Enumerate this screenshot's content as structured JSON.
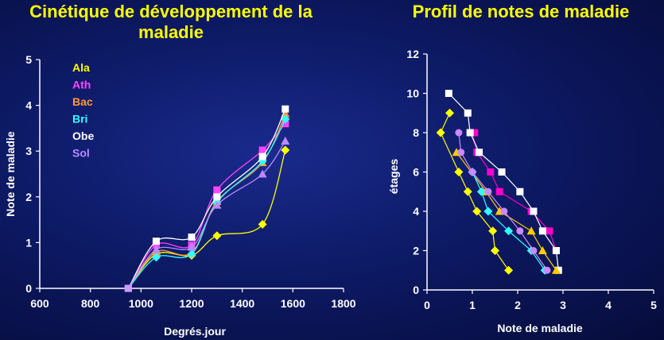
{
  "colors": {
    "Ala": "#ffff00",
    "Ath": "#ff44ff",
    "Bac": "#ff9933",
    "Bri": "#33ffff",
    "Obe": "#ffffff",
    "Sol": "#bb88ff",
    "P1": "#ffff00",
    "P2": "#ff00cc",
    "P3": "#ffffff",
    "P4": "#ffcc00",
    "P5": "#33ffff",
    "P6": "#cc88ff"
  },
  "chart_data": [
    {
      "type": "line",
      "title": "Cinétique de développement de la maladie",
      "xlabel": "Degrés.jour",
      "ylabel": "Note de maladie",
      "xlim": [
        600,
        1800
      ],
      "ylim": [
        0,
        5
      ],
      "xticks": [
        "600",
        "800",
        "1000",
        "1200",
        "1400",
        "1600",
        "1800"
      ],
      "yticks": [
        "0",
        "1",
        "2",
        "3",
        "4",
        "5"
      ],
      "legend_position": "top-left",
      "series": [
        {
          "name": "Ala",
          "marker": "diamond",
          "x": [
            950,
            1060,
            1200,
            1300,
            1480,
            1570
          ],
          "y": [
            0,
            0.75,
            0.72,
            1.15,
            1.4,
            3.02
          ]
        },
        {
          "name": "Ath",
          "marker": "square",
          "x": [
            950,
            1060,
            1200,
            1300,
            1480,
            1570
          ],
          "y": [
            0,
            0.95,
            0.95,
            2.15,
            3.02,
            3.6
          ]
        },
        {
          "name": "Bac",
          "marker": "triangle",
          "x": [
            950,
            1060,
            1200,
            1300,
            1480,
            1570
          ],
          "y": [
            0,
            0.8,
            0.78,
            1.9,
            2.75,
            3.82
          ]
        },
        {
          "name": "Bri",
          "marker": "diamond",
          "x": [
            950,
            1060,
            1200,
            1300,
            1480,
            1570
          ],
          "y": [
            0,
            0.68,
            0.75,
            1.88,
            2.78,
            3.7
          ]
        },
        {
          "name": "Obe",
          "marker": "square",
          "x": [
            950,
            1060,
            1200,
            1300,
            1480,
            1570
          ],
          "y": [
            0,
            1.03,
            1.12,
            2.0,
            2.88,
            3.92
          ]
        },
        {
          "name": "Sol",
          "marker": "triangle",
          "x": [
            950,
            1060,
            1200,
            1300,
            1480,
            1570
          ],
          "y": [
            0,
            0.85,
            0.9,
            1.82,
            2.5,
            3.22
          ]
        }
      ]
    },
    {
      "type": "line",
      "title": "Profil de notes de maladie",
      "xlabel": "Note de maladie",
      "ylabel": "étages",
      "xlim": [
        0,
        5
      ],
      "ylim": [
        0,
        12
      ],
      "xticks": [
        "0",
        "1",
        "2",
        "3",
        "4",
        "5"
      ],
      "yticks": [
        "0",
        "2",
        "4",
        "6",
        "8",
        "10",
        "12"
      ],
      "series": [
        {
          "marker": "diamond",
          "color_key": "P1",
          "x": [
            1.8,
            1.5,
            1.45,
            1.1,
            0.9,
            0.7,
            0.3,
            0.5
          ],
          "y": [
            1,
            2,
            3,
            4,
            5,
            6,
            8,
            9
          ]
        },
        {
          "marker": "square",
          "color_key": "P2",
          "x": [
            2.85,
            2.7,
            2.3,
            1.6,
            1.4,
            1.1,
            1.0,
            1.05
          ],
          "y": [
            2,
            3,
            4,
            5,
            6,
            7,
            8,
            8
          ]
        },
        {
          "marker": "square",
          "color_key": "P3",
          "x": [
            2.9,
            2.85,
            2.55,
            2.35,
            2.05,
            1.65,
            1.15,
            0.95,
            0.9,
            0.48
          ],
          "y": [
            1,
            2,
            3,
            4,
            5,
            6,
            7,
            8,
            9,
            10
          ]
        },
        {
          "marker": "triangle",
          "color_key": "P4",
          "x": [
            2.85,
            2.55,
            2.3,
            1.6,
            1.3,
            0.65
          ],
          "y": [
            1,
            2,
            3,
            4,
            5,
            7
          ]
        },
        {
          "marker": "diamond",
          "color_key": "P5",
          "x": [
            2.6,
            2.3,
            1.8,
            1.35,
            1.2,
            1.0
          ],
          "y": [
            1,
            2,
            3,
            4,
            5,
            6
          ]
        },
        {
          "marker": "circle",
          "color_key": "P6",
          "x": [
            2.65,
            2.35,
            2.05,
            1.7,
            1.35,
            1.0,
            0.75,
            0.7
          ],
          "y": [
            1,
            2,
            3,
            4,
            5,
            6,
            7,
            8
          ]
        }
      ]
    }
  ]
}
